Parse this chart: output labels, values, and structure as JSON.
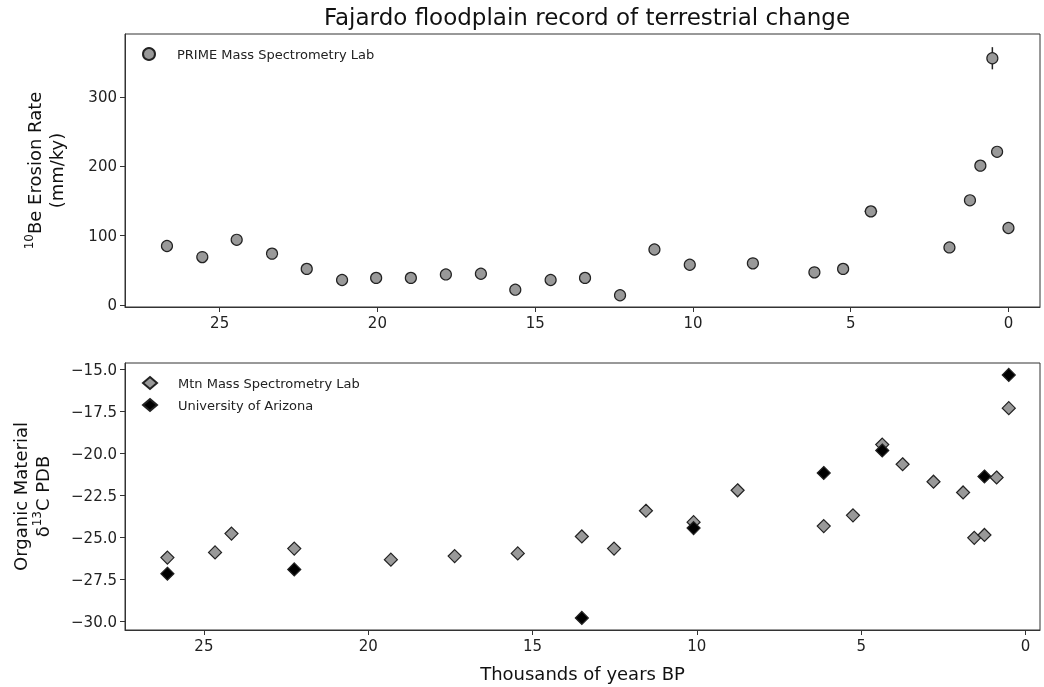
{
  "chart_data": [
    {
      "type": "scatter",
      "title": "Fajardo floodplain record of terrestrial change",
      "ylabel": "$^{10}$Be Erosion Rate\n(mm/ky)",
      "xlim": [
        28,
        -1
      ],
      "xticks": [
        25,
        20,
        15,
        10,
        5,
        0
      ],
      "ylim": [
        -3,
        391
      ],
      "yticks": [
        0,
        100,
        200,
        300
      ],
      "grid": false,
      "legend": "top left",
      "marker": "circle",
      "series": [
        {
          "name": "PRIME Mass Spectrometry Lab",
          "color": "#999999",
          "x": [
            26.67,
            25.55,
            24.46,
            23.34,
            22.24,
            21.12,
            20.04,
            18.94,
            17.83,
            16.72,
            15.63,
            14.51,
            13.42,
            12.31,
            11.22,
            10.1,
            8.1,
            6.15,
            5.24,
            4.36,
            1.87,
            1.22,
            0.89,
            0.51,
            0.36,
            0.0
          ],
          "values": [
            85,
            69,
            94,
            74,
            52,
            36,
            39,
            39,
            44,
            45,
            22,
            36,
            39,
            14,
            80,
            58,
            60,
            47,
            52,
            135,
            83,
            151,
            201,
            356,
            221,
            111
          ],
          "errors": [
            null,
            null,
            null,
            null,
            null,
            null,
            null,
            null,
            null,
            null,
            null,
            null,
            null,
            null,
            null,
            null,
            null,
            null,
            null,
            null,
            null,
            null,
            null,
            16,
            null,
            null
          ],
          "xerrors": [
            null,
            null,
            null,
            null,
            null,
            null,
            null,
            null,
            null,
            null,
            null,
            null,
            null,
            null,
            null,
            null,
            null,
            null,
            null,
            0.2,
            null,
            null,
            null,
            null,
            null,
            null
          ]
        }
      ]
    },
    {
      "type": "scatter",
      "xlabel": "Thousands of years BP",
      "ylabel": "Organic Material\nδ$^{13}$C PDB",
      "xlim": [
        27.4,
        -0.44
      ],
      "xticks": [
        25,
        20,
        15,
        10,
        5,
        0
      ],
      "ylim": [
        -30.5,
        -14.6
      ],
      "yticks": [
        {
          "value": -15,
          "label": "−15.0"
        },
        {
          "value": -17.5,
          "label": "−17.5"
        },
        {
          "value": -20,
          "label": "−20.0"
        },
        {
          "value": -22.5,
          "label": "−22.5"
        },
        {
          "value": -25,
          "label": "−25.0"
        },
        {
          "value": -27.5,
          "label": "−27.5"
        },
        {
          "value": -30,
          "label": "−30.0"
        }
      ],
      "grid": false,
      "legend": "top left",
      "marker": "diamond",
      "series": [
        {
          "name": "Mtn Mass Spectrometry Lab",
          "color": "#999999",
          "x": [
            26.11,
            24.66,
            24.16,
            22.25,
            19.31,
            17.37,
            15.45,
            13.5,
            12.52,
            11.55,
            10.1,
            8.76,
            6.14,
            5.25,
            4.36,
            3.74,
            2.8,
            1.9,
            1.56,
            1.25,
            0.88,
            0.51
          ],
          "values": [
            -26.19,
            -25.88,
            -24.76,
            -25.65,
            -26.31,
            -26.1,
            -25.94,
            -24.93,
            -25.65,
            -23.4,
            -24.08,
            -22.18,
            -24.31,
            -23.67,
            -19.46,
            -20.63,
            -21.67,
            -22.31,
            -25.01,
            -24.84,
            -21.42,
            -17.29
          ]
        },
        {
          "name": "University of Arizona",
          "color": "#000000",
          "x": [
            26.11,
            22.25,
            13.5,
            10.1,
            6.14,
            4.36,
            1.25,
            0.51
          ],
          "values": [
            -27.15,
            -26.89,
            -29.78,
            -24.43,
            -21.15,
            -19.81,
            -21.36,
            -15.31
          ]
        }
      ]
    }
  ]
}
